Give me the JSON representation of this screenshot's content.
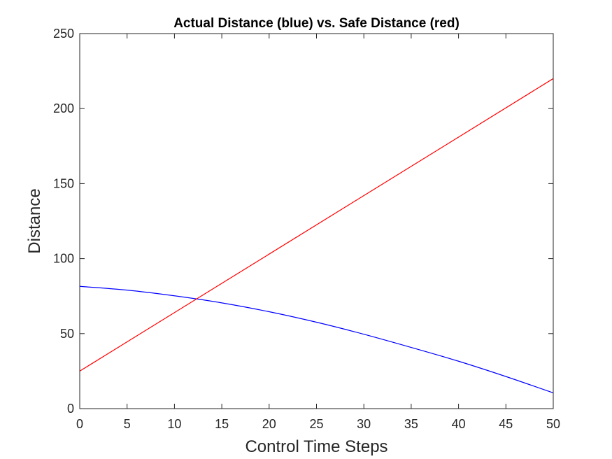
{
  "chart_data": {
    "type": "line",
    "title": "Actual Distance (blue) vs. Safe Distance (red)",
    "xlabel": "Control Time Steps",
    "ylabel": "Distance",
    "xlim": [
      0,
      50
    ],
    "ylim": [
      0,
      250
    ],
    "xticks": [
      0,
      5,
      10,
      15,
      20,
      25,
      30,
      35,
      40,
      45,
      50
    ],
    "yticks": [
      0,
      50,
      100,
      150,
      200,
      250
    ],
    "grid": false,
    "legend": "none",
    "series": [
      {
        "color": "#0000ff",
        "x": [
          0,
          5,
          10,
          15,
          20,
          25,
          30,
          35,
          40,
          45,
          50
        ],
        "y": [
          81.5,
          79.0,
          75.2,
          70.5,
          64.6,
          57.6,
          49.6,
          40.8,
          31.6,
          21.4,
          10.5
        ]
      },
      {
        "color": "#ff0000",
        "x": [
          0,
          50
        ],
        "y": [
          25,
          220
        ]
      }
    ]
  }
}
